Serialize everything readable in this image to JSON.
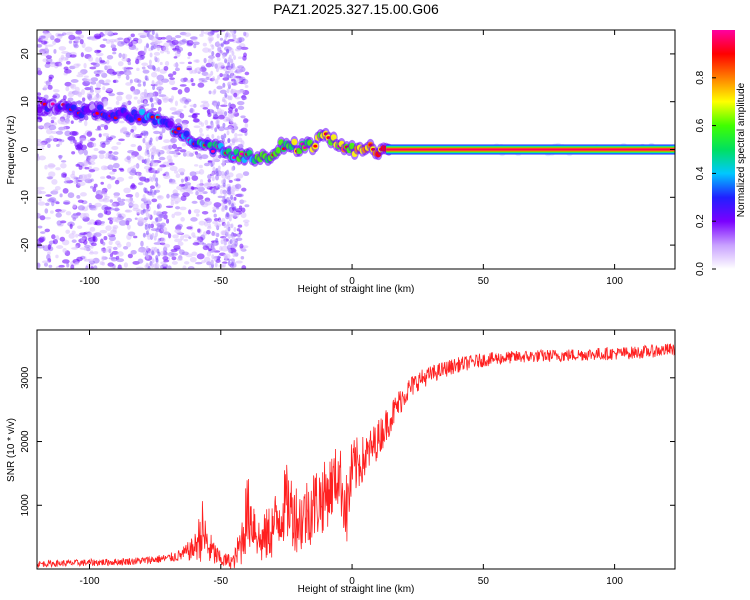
{
  "chart_data": [
    {
      "type": "heatmap",
      "title": "PAZ1.2025.327.15.00.G06",
      "xlabel": "Height of straight line (km)",
      "ylabel": "Frequency (Hz)",
      "xlim": [
        -120,
        123
      ],
      "ylim": [
        -25,
        25
      ],
      "x_ticks": [
        -100,
        -50,
        0,
        50,
        100
      ],
      "x_tick_labels": [
        "-100",
        "-50",
        "0",
        "50",
        "100"
      ],
      "y_ticks": [
        -20,
        -10,
        0,
        10,
        20
      ],
      "y_tick_labels": [
        "-20",
        "-10",
        "0",
        "10",
        "20"
      ],
      "colorbar": {
        "label": "Normalized spectral amplitude",
        "range": [
          0,
          1
        ],
        "ticks": [
          0.0,
          0.2,
          0.4,
          0.6,
          0.8
        ],
        "tick_labels": [
          "0.0",
          "0.2",
          "0.4",
          "0.6",
          "0.8"
        ],
        "colormap": [
          "#ffffff",
          "#c8a0ff",
          "#7a00ff",
          "#2020ff",
          "#00c8ff",
          "#00e060",
          "#40ff00",
          "#ffff00",
          "#ff8000",
          "#ff0000",
          "#ff00a0"
        ]
      },
      "ridge": {
        "x": [
          -120,
          -110,
          -100,
          -90,
          -80,
          -75,
          -70,
          -65,
          -60,
          -55,
          -50,
          -45,
          -42,
          -40,
          -35,
          -30,
          -25,
          -20,
          -15,
          -10,
          -5,
          0,
          5,
          10,
          15,
          123
        ],
        "freq": [
          9,
          8.5,
          8,
          7.5,
          7,
          6,
          5,
          3,
          2,
          1,
          0,
          -1,
          -1.5,
          -1,
          -2,
          -1,
          1.5,
          0,
          1,
          3,
          1,
          0,
          0,
          0,
          0,
          0
        ],
        "amplitude": [
          0.1,
          0.15,
          0.2,
          0.25,
          0.3,
          0.35,
          0.3,
          0.35,
          0.4,
          0.45,
          0.5,
          0.5,
          0.55,
          0.6,
          0.65,
          0.7,
          0.7,
          0.75,
          0.7,
          0.8,
          0.8,
          0.85,
          0.9,
          1.0,
          1.0,
          1.0
        ]
      }
    },
    {
      "type": "line",
      "xlabel": "Height of straight line (km)",
      "ylabel": "SNR (10 * v/v)",
      "xlim": [
        -120,
        123
      ],
      "ylim": [
        0,
        3750
      ],
      "x_ticks": [
        -100,
        -50,
        0,
        50,
        100
      ],
      "x_tick_labels": [
        "-100",
        "-50",
        "0",
        "50",
        "100"
      ],
      "y_ticks": [
        1000,
        2000,
        3000
      ],
      "y_tick_labels": [
        "1000",
        "2000",
        "3000"
      ],
      "series": [
        {
          "name": "SNR",
          "color": "#ff2020",
          "x": [
            -120,
            -110,
            -100,
            -90,
            -80,
            -70,
            -65,
            -60,
            -57,
            -55,
            -50,
            -45,
            -42,
            -40,
            -37,
            -35,
            -30,
            -25,
            -20,
            -15,
            -10,
            -5,
            -2,
            0,
            5,
            10,
            15,
            20,
            25,
            30,
            35,
            40,
            50,
            60,
            70,
            80,
            90,
            100,
            110,
            123
          ],
          "values": [
            80,
            90,
            100,
            110,
            130,
            170,
            220,
            330,
            600,
            350,
            140,
            120,
            450,
            900,
            700,
            400,
            650,
            1050,
            750,
            1000,
            1150,
            1500,
            900,
            1550,
            1750,
            2050,
            2400,
            2750,
            2950,
            3050,
            3130,
            3200,
            3280,
            3320,
            3340,
            3350,
            3370,
            3380,
            3400,
            3450
          ],
          "noise": [
            50,
            50,
            55,
            55,
            60,
            70,
            100,
            200,
            500,
            300,
            120,
            120,
            400,
            600,
            450,
            350,
            500,
            600,
            550,
            600,
            550,
            500,
            600,
            500,
            350,
            300,
            250,
            200,
            160,
            140,
            130,
            120,
            110,
            100,
            100,
            100,
            100,
            100,
            100,
            100
          ]
        }
      ]
    }
  ]
}
